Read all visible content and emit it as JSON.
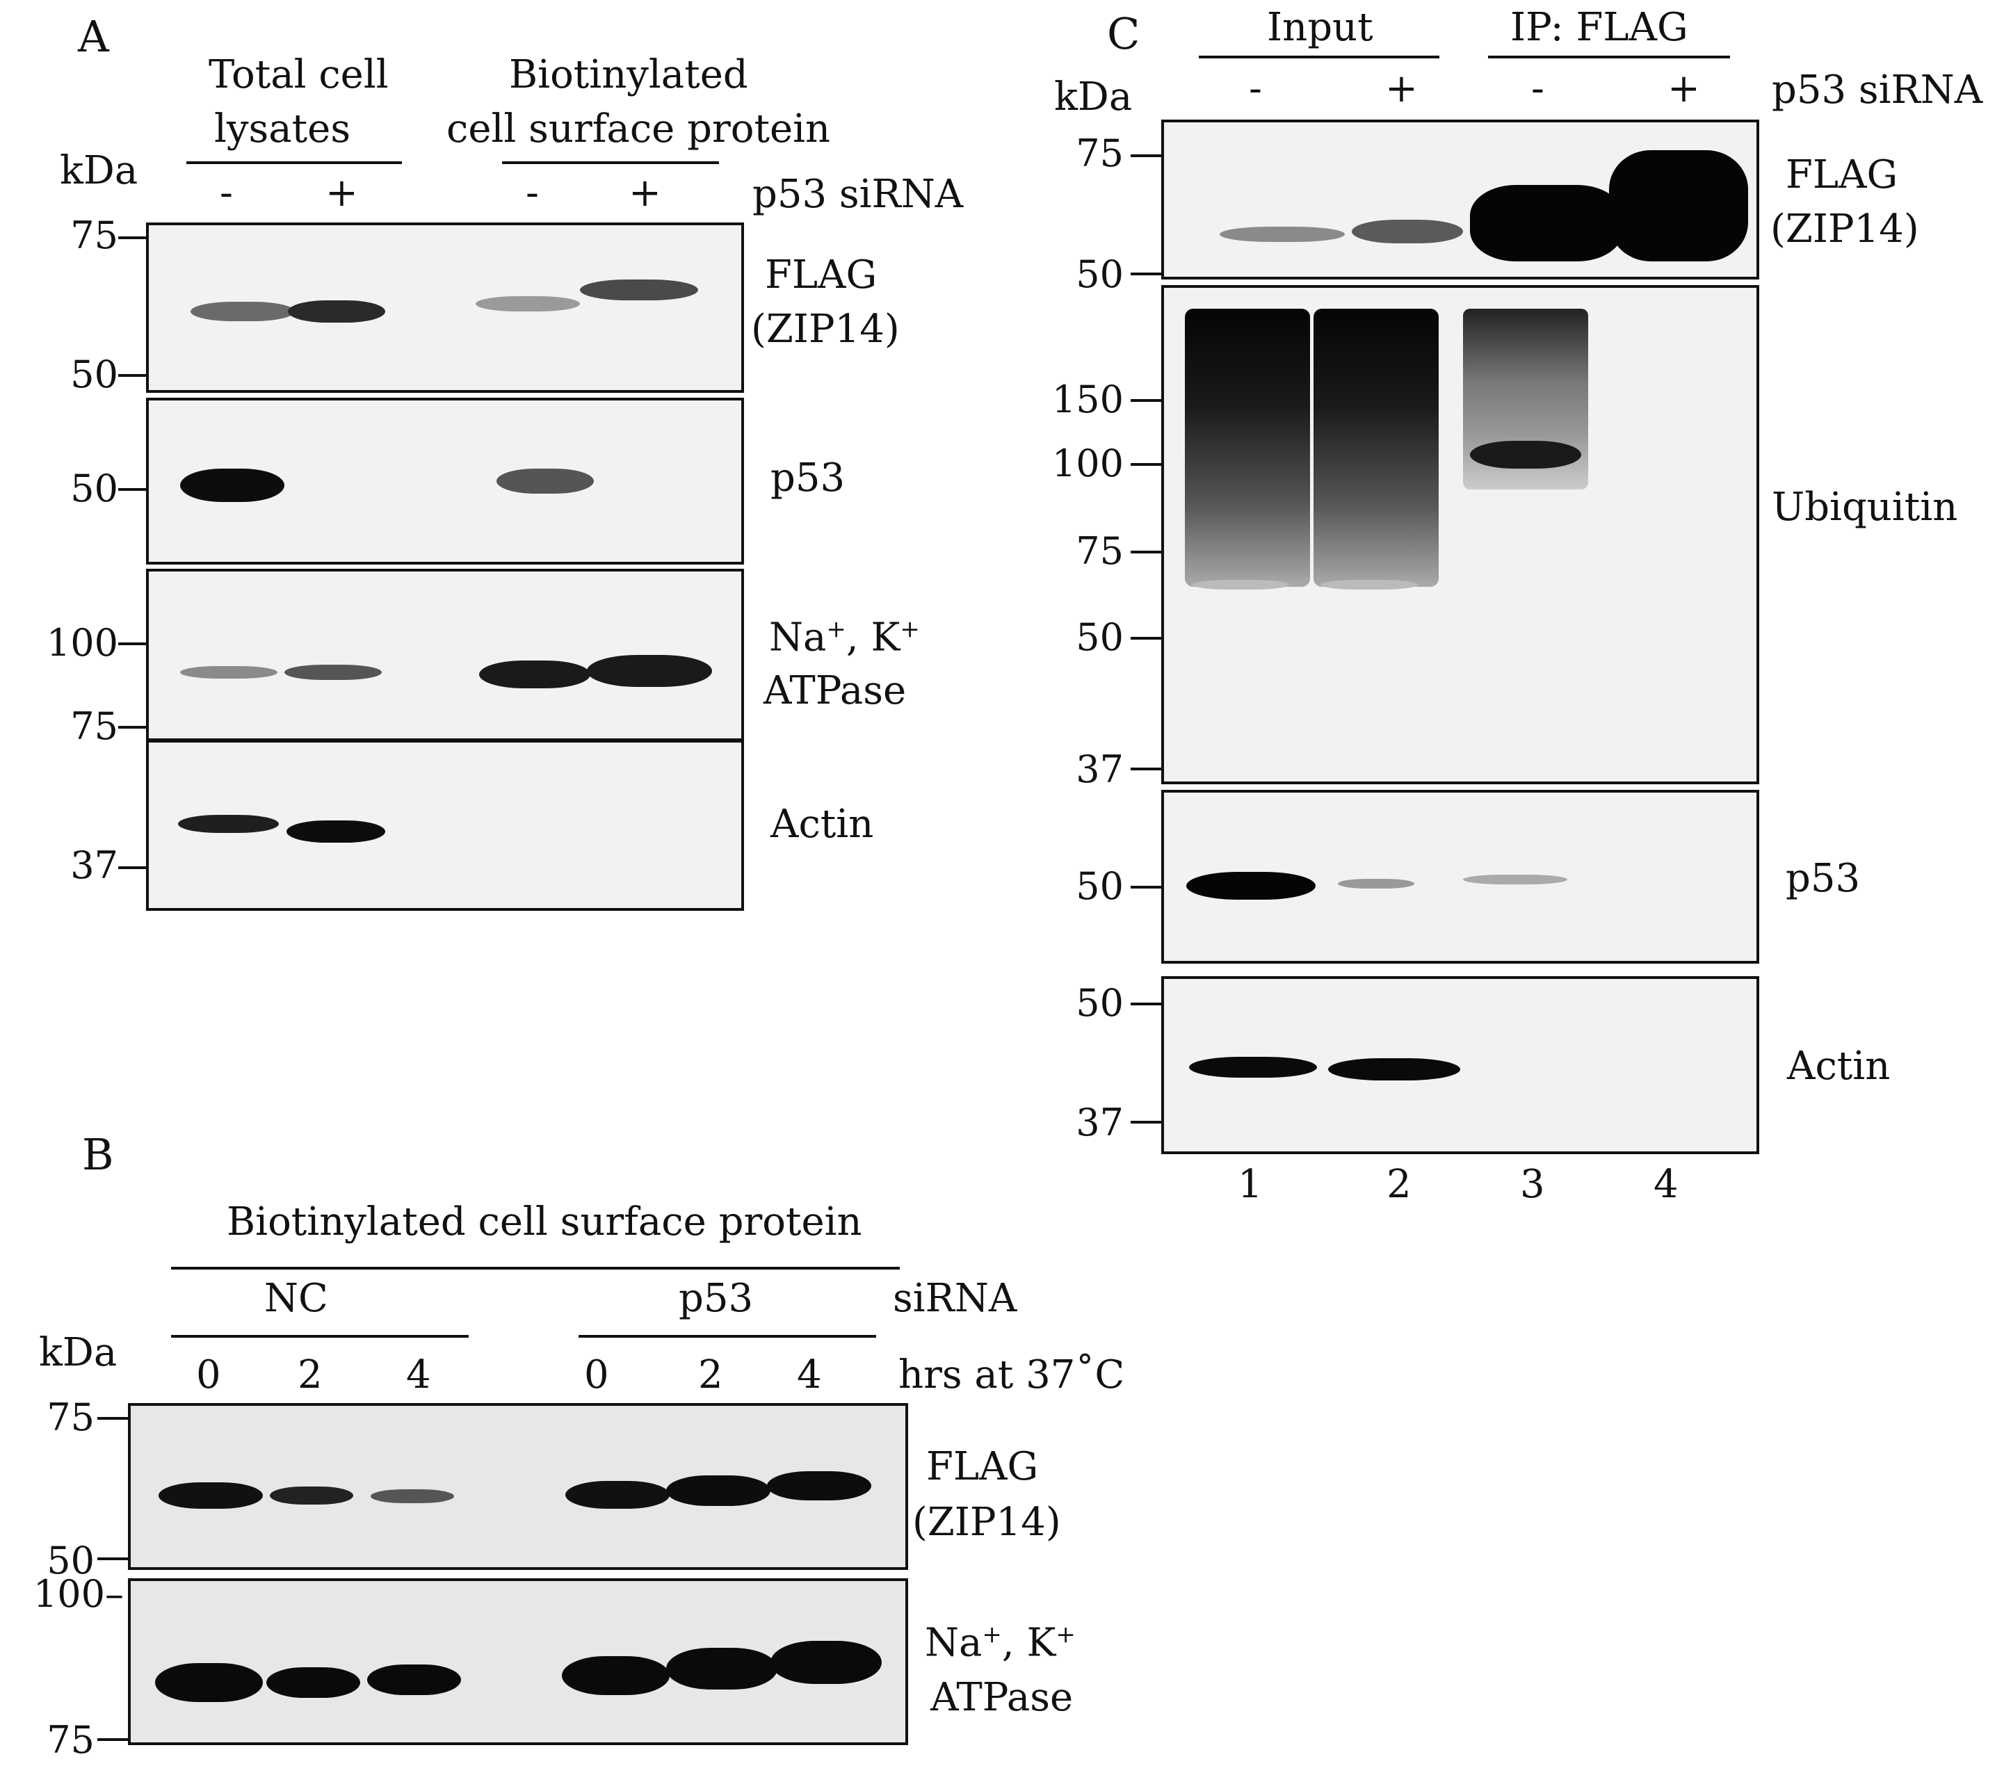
{
  "panelA": {
    "letter": "A",
    "group1": [
      "Total cell",
      "lysates"
    ],
    "group2": [
      "Biotinylated",
      "cell surface protein"
    ],
    "kda": "kDa",
    "signs": [
      "-",
      "+",
      "-",
      "+"
    ],
    "condition": "p53 siRNA",
    "blots": [
      {
        "label": [
          "FLAG",
          "(ZIP14)"
        ],
        "markers": [
          "75",
          "50"
        ]
      },
      {
        "label": [
          "p53"
        ],
        "markers": [
          "50"
        ]
      },
      {
        "label": [
          "Na",
          "+",
          ", K",
          "+",
          "ATPase"
        ],
        "markers": [
          "100",
          "75"
        ]
      },
      {
        "label": [
          "Actin"
        ],
        "markers": [
          "37"
        ]
      }
    ]
  },
  "panelB": {
    "letter": "B",
    "header": "Biotinylated cell surface protein",
    "groups": [
      "NC",
      "p53"
    ],
    "condition": "siRNA",
    "kda": "kDa",
    "times": [
      "0",
      "2",
      "4",
      "0",
      "2",
      "4"
    ],
    "time_label": "hrs  at 37˚C",
    "blots": [
      {
        "label": [
          "FLAG",
          "(ZIP14)"
        ],
        "markers": [
          "75",
          "50"
        ]
      },
      {
        "label": [
          "Na",
          "+",
          ", K",
          "+",
          "ATPase"
        ],
        "markers": [
          "100–",
          "75"
        ]
      }
    ]
  },
  "panelC": {
    "letter": "C",
    "groups": [
      "Input",
      "IP: FLAG"
    ],
    "kda": "kDa",
    "signs": [
      "-",
      "+",
      "-",
      "+"
    ],
    "condition": "p53 siRNA",
    "blots": [
      {
        "label": [
          "FLAG",
          "(ZIP14)"
        ],
        "markers": [
          "75",
          "50"
        ]
      },
      {
        "label": [
          "Ubiquitin"
        ],
        "markers": [
          "150",
          "100",
          "75",
          "50",
          "37"
        ]
      },
      {
        "label": [
          "p53"
        ],
        "markers": [
          "50"
        ]
      },
      {
        "label": [
          "Actin"
        ],
        "markers": [
          "50",
          "37"
        ]
      }
    ],
    "lanes": [
      "1",
      "2",
      "3",
      "4"
    ]
  }
}
